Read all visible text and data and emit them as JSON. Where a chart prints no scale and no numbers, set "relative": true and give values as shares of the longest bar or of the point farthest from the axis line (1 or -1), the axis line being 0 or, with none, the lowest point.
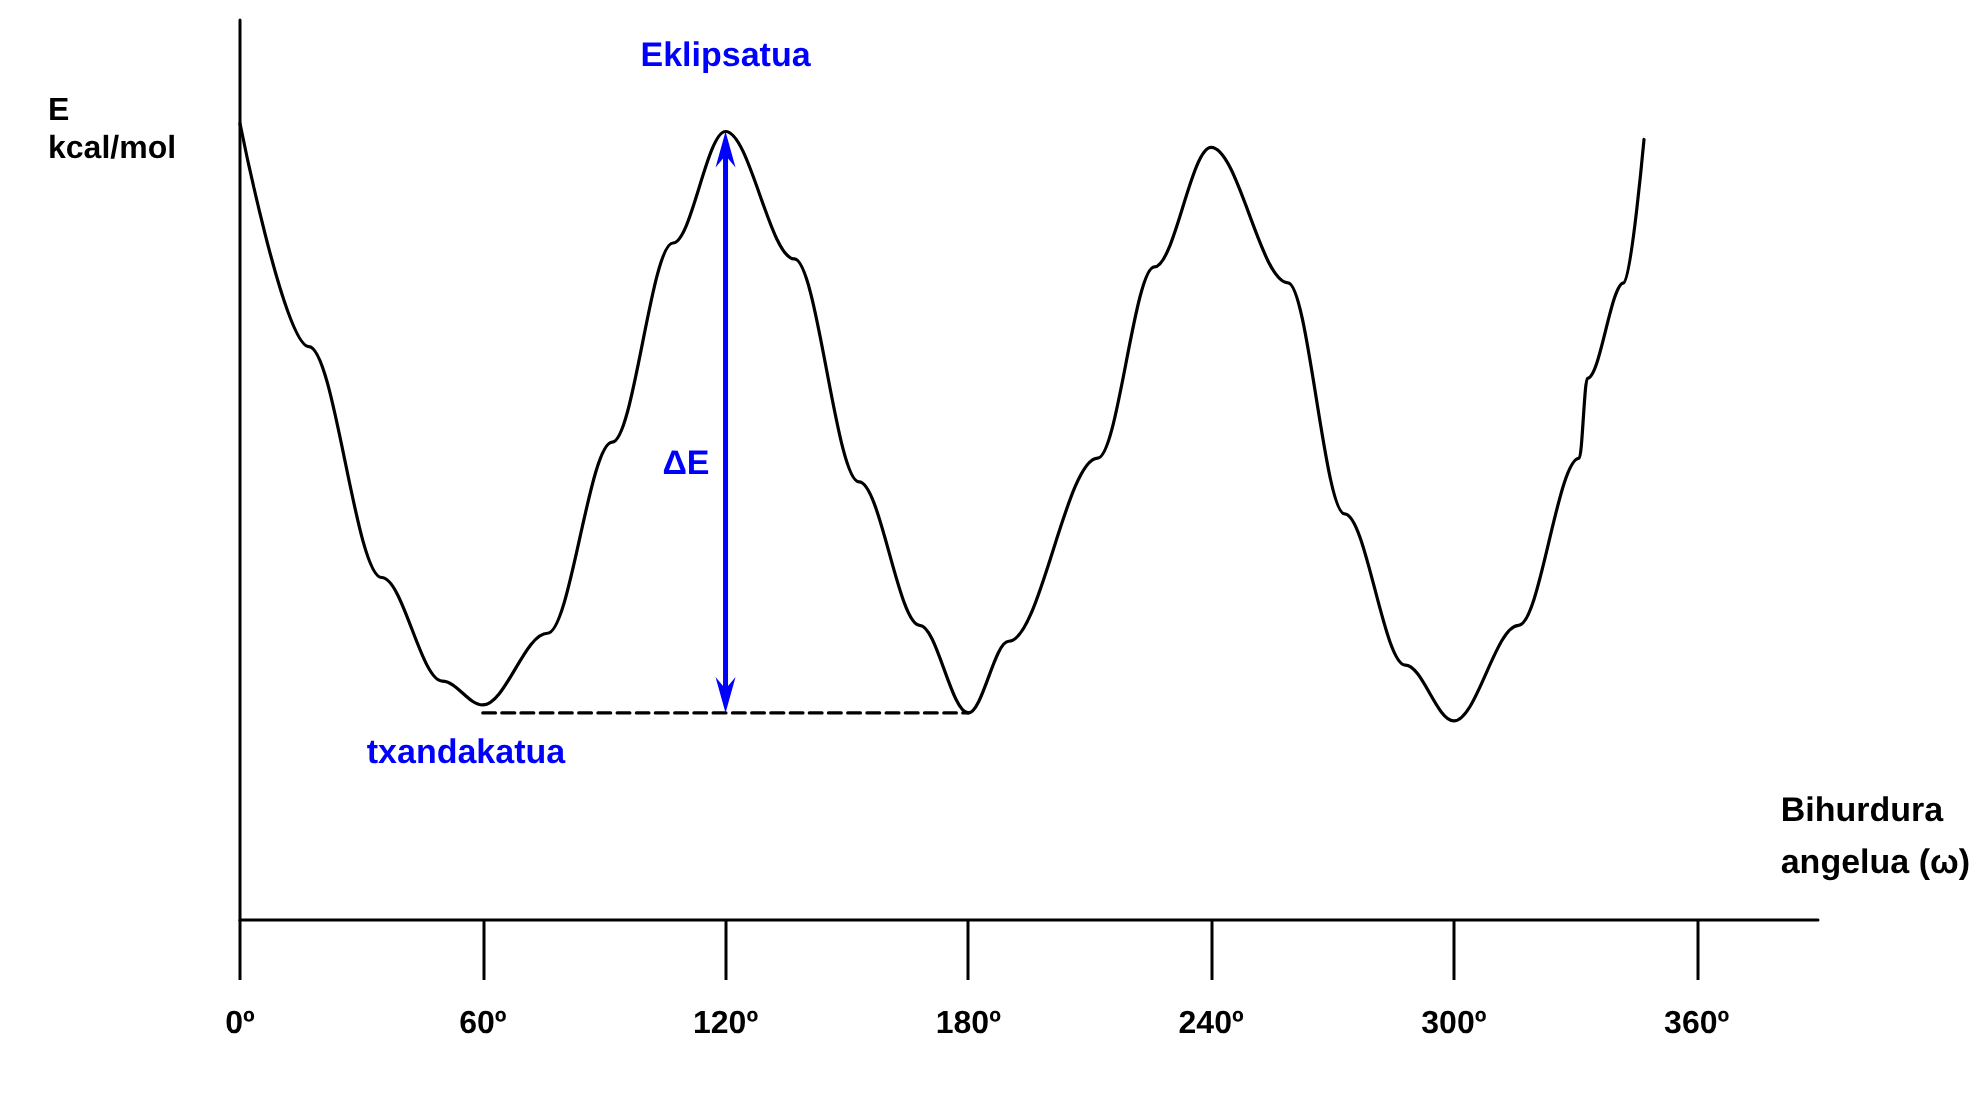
{
  "chart_data": {
    "type": "line",
    "relative": true,
    "xlabel": "Bihurdura\nangelua (ω)",
    "ylabel": "E\nkcal/mol",
    "annotations": [
      {
        "text": "Eklipsatua",
        "x": 120,
        "y": 0.99
      },
      {
        "text": "txandakatua",
        "x": 60,
        "y": 0.27
      },
      "ΔE"
    ],
    "xlim": [
      0,
      390
    ],
    "xticks": [
      {
        "value": 0,
        "label": "0º"
      },
      {
        "value": 60,
        "label": "60º"
      },
      {
        "value": 120,
        "label": "120º"
      },
      {
        "value": 180,
        "label": "180º"
      },
      {
        "value": 240,
        "label": "240º"
      },
      {
        "value": 300,
        "label": "300º"
      },
      {
        "value": 360,
        "label": "360º"
      }
    ],
    "series": [
      {
        "color": "#000000",
        "x": [
          0,
          17,
          35,
          50,
          60,
          76,
          92,
          107,
          120,
          137,
          153,
          168,
          180,
          190,
          212,
          226,
          240,
          259,
          273,
          288,
          300,
          316,
          331,
          333,
          342,
          347
        ],
        "values": [
          1.0,
          0.72,
          0.43,
          0.3,
          0.27,
          0.36,
          0.6,
          0.85,
          0.99,
          0.83,
          0.55,
          0.37,
          0.26,
          0.35,
          0.58,
          0.82,
          0.97,
          0.8,
          0.51,
          0.32,
          0.25,
          0.37,
          0.58,
          0.68,
          0.8,
          0.98
        ]
      },
      {
        "color": "#000000",
        "line_style": "dashed",
        "x": [
          60,
          180
        ],
        "values": [
          0.26,
          0.26
        ]
      }
    ],
    "grid": false,
    "marker": "none",
    "line_style": "solid"
  }
}
